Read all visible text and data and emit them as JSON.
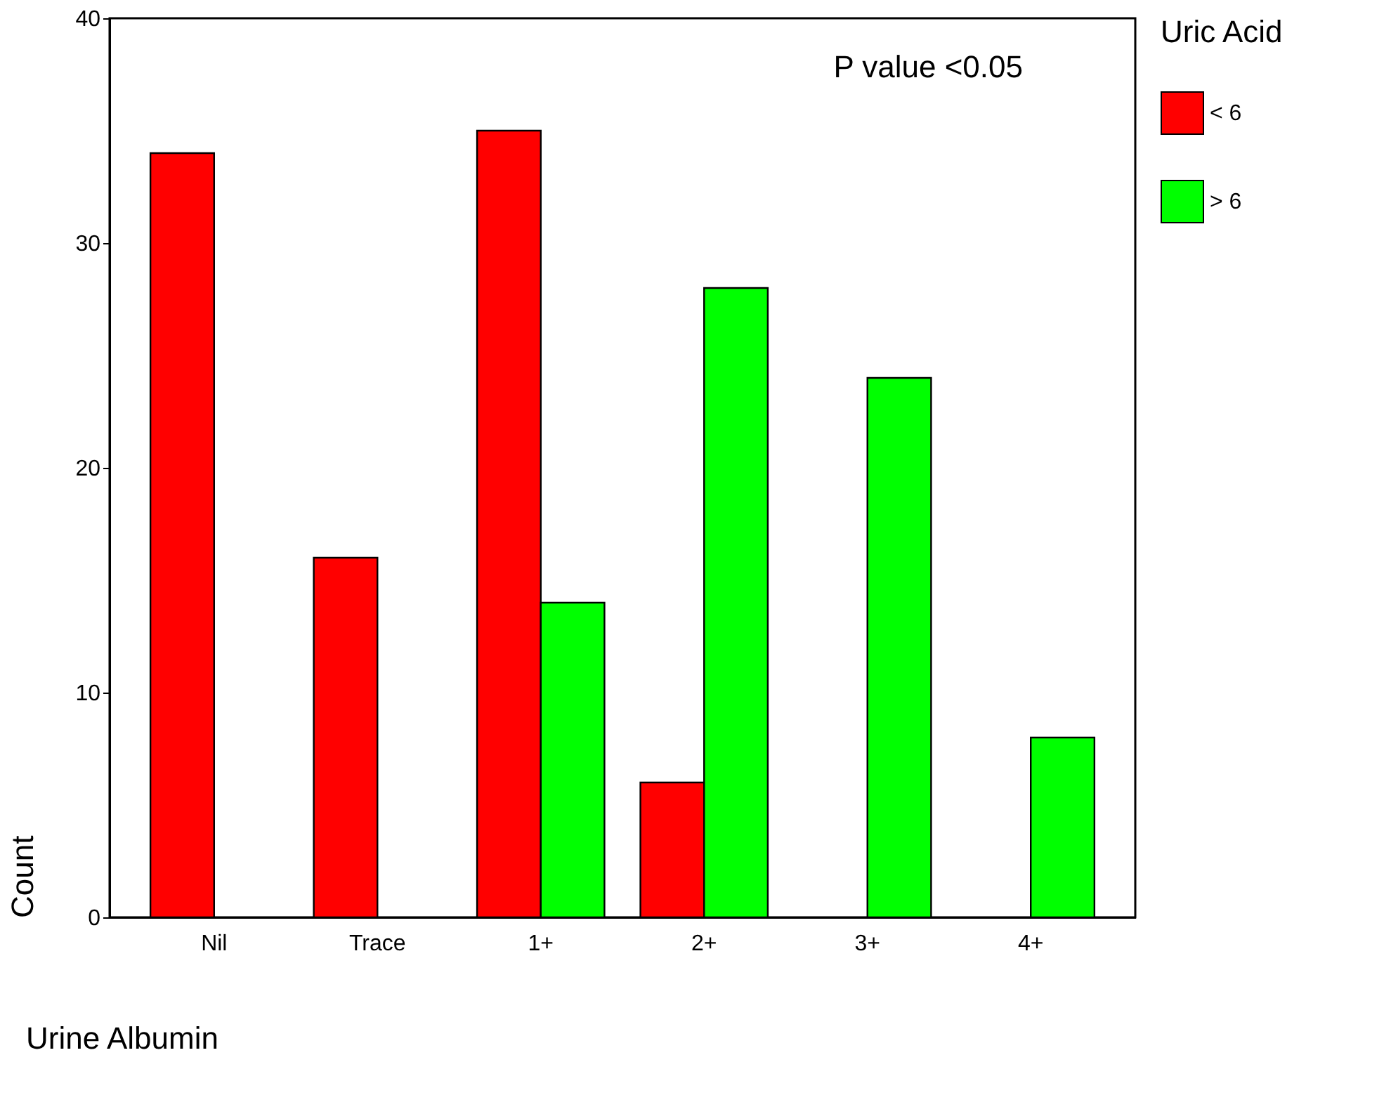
{
  "chart_data": {
    "type": "bar",
    "xlabel": "Urine Albumin",
    "ylabel": "Count",
    "legend_title": "Uric Acid",
    "categories": [
      "Nil",
      "Trace",
      "1+",
      "2+",
      "3+",
      "4+"
    ],
    "series": [
      {
        "name": "< 6",
        "color": "#ff0000",
        "values": [
          34,
          16,
          35,
          6,
          null,
          null
        ]
      },
      {
        "name": "> 6",
        "color": "#00ff00",
        "values": [
          null,
          null,
          14,
          28,
          24,
          8
        ]
      }
    ],
    "ylim": [
      0,
      40
    ],
    "yticks": [
      0,
      10,
      20,
      30,
      40
    ],
    "grid": false,
    "legend": "right",
    "annotations": [
      "P value  <0.05"
    ]
  }
}
